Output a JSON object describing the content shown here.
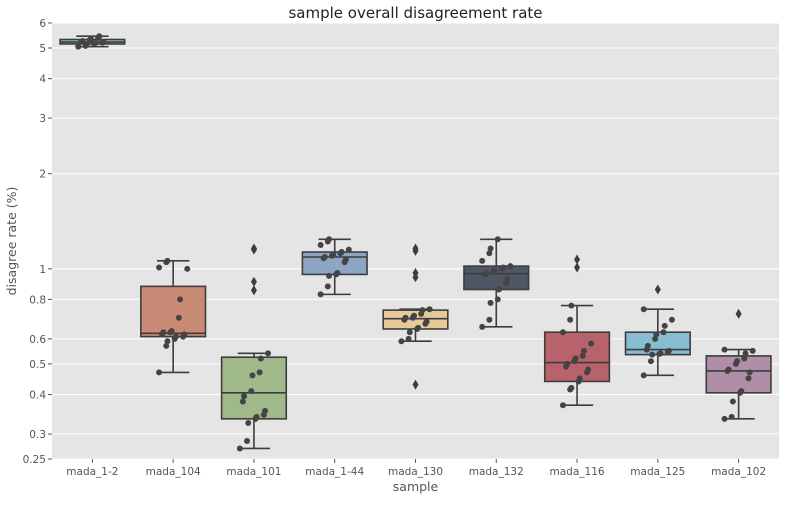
{
  "chart_data": {
    "type": "box",
    "title": "sample overall disagreement rate",
    "xlabel": "sample",
    "ylabel": "disagree rate (%)",
    "yscale": "log",
    "ylim": [
      0.25,
      6
    ],
    "yticks": [
      0.25,
      0.3,
      0.4,
      0.5,
      0.6,
      0.8,
      1,
      2,
      3,
      4,
      5,
      6
    ],
    "grid": true,
    "categories": [
      "mada_1-2",
      "mada_104",
      "mada_101",
      "mada_1-44",
      "mada_130",
      "mada_132",
      "mada_116",
      "mada_125",
      "mada_102"
    ],
    "colors": [
      "#8fc3b6",
      "#c98b76",
      "#9fb98a",
      "#8ea6c4",
      "#e8c99a",
      "#4f5766",
      "#b8626c",
      "#86bdd0",
      "#b08ea8"
    ],
    "boxes": [
      {
        "min": 5.05,
        "q1": 5.15,
        "median": 5.22,
        "q3": 5.32,
        "max": 5.45,
        "outliers": [],
        "points": [
          5.05,
          5.08,
          5.12,
          5.15,
          5.18,
          5.2,
          5.22,
          5.24,
          5.26,
          5.3,
          5.33,
          5.38,
          5.45
        ]
      },
      {
        "min": 0.47,
        "q1": 0.61,
        "median": 0.625,
        "q3": 0.88,
        "max": 1.06,
        "outliers": [],
        "points": [
          0.47,
          0.57,
          0.59,
          0.6,
          0.61,
          0.61,
          0.62,
          0.62,
          0.63,
          0.63,
          0.635,
          0.7,
          0.8,
          1.0,
          1.01,
          1.05,
          1.06
        ]
      },
      {
        "min": 0.27,
        "q1": 0.335,
        "median": 0.405,
        "q3": 0.525,
        "max": 0.54,
        "outliers": [
          0.855,
          0.91,
          1.15,
          1.16
        ],
        "points": [
          0.27,
          0.285,
          0.325,
          0.335,
          0.34,
          0.345,
          0.355,
          0.38,
          0.395,
          0.41,
          0.46,
          0.47,
          0.52,
          0.54
        ]
      },
      {
        "min": 0.83,
        "q1": 0.96,
        "median": 1.09,
        "q3": 1.13,
        "max": 1.24,
        "outliers": [],
        "points": [
          0.83,
          0.88,
          0.95,
          0.96,
          0.97,
          1.05,
          1.07,
          1.08,
          1.09,
          1.1,
          1.11,
          1.12,
          1.13,
          1.15,
          1.19,
          1.22,
          1.24
        ]
      },
      {
        "min": 0.59,
        "q1": 0.645,
        "median": 0.695,
        "q3": 0.74,
        "max": 0.745,
        "outliers": [
          0.43,
          0.94,
          0.97,
          1.14,
          1.16
        ],
        "points": [
          0.59,
          0.6,
          0.63,
          0.645,
          0.65,
          0.67,
          0.68,
          0.69,
          0.7,
          0.7,
          0.71,
          0.72,
          0.74,
          0.745
        ]
      },
      {
        "min": 0.655,
        "q1": 0.86,
        "median": 0.965,
        "q3": 1.02,
        "max": 1.24,
        "outliers": [],
        "points": [
          0.655,
          0.69,
          0.78,
          0.8,
          0.86,
          0.9,
          0.93,
          0.96,
          0.97,
          0.98,
          0.99,
          1.0,
          1.01,
          1.02,
          1.06,
          1.12,
          1.16,
          1.24
        ]
      },
      {
        "min": 0.37,
        "q1": 0.44,
        "median": 0.505,
        "q3": 0.63,
        "max": 0.765,
        "outliers": [
          1.01,
          1.07
        ],
        "points": [
          0.37,
          0.415,
          0.42,
          0.44,
          0.45,
          0.47,
          0.48,
          0.49,
          0.5,
          0.51,
          0.52,
          0.53,
          0.55,
          0.58,
          0.63,
          0.69,
          0.765
        ]
      },
      {
        "min": 0.46,
        "q1": 0.535,
        "median": 0.555,
        "q3": 0.63,
        "max": 0.745,
        "outliers": [
          0.86
        ],
        "points": [
          0.46,
          0.51,
          0.535,
          0.538,
          0.54,
          0.545,
          0.55,
          0.555,
          0.57,
          0.6,
          0.62,
          0.63,
          0.66,
          0.69,
          0.745
        ]
      },
      {
        "min": 0.335,
        "q1": 0.405,
        "median": 0.475,
        "q3": 0.53,
        "max": 0.555,
        "outliers": [
          0.72
        ],
        "points": [
          0.335,
          0.34,
          0.38,
          0.405,
          0.41,
          0.45,
          0.47,
          0.475,
          0.48,
          0.5,
          0.51,
          0.52,
          0.54,
          0.55,
          0.555
        ]
      }
    ]
  }
}
